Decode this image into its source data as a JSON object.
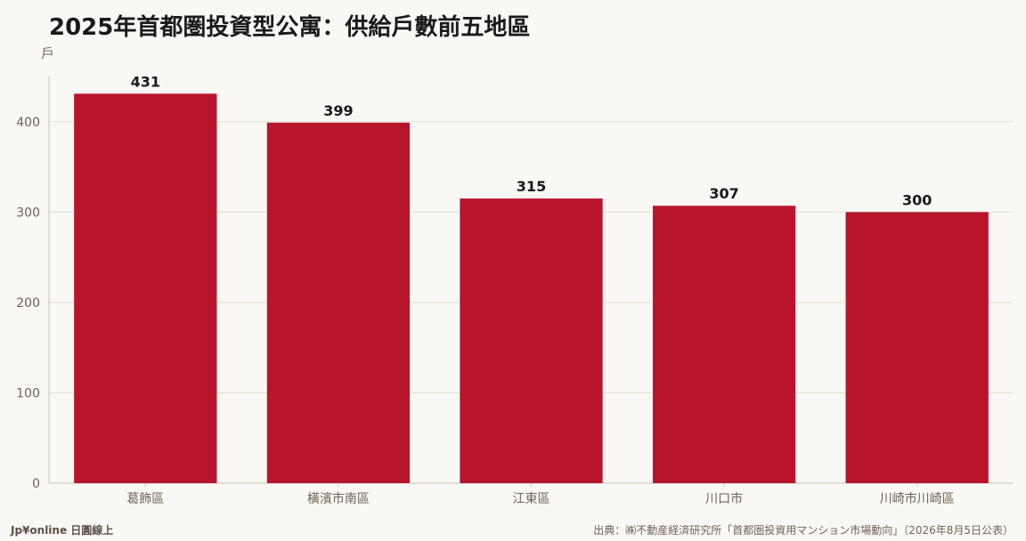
{
  "chart_data": {
    "type": "bar",
    "title": "2025年首都圏投資型公寓：供給戶數前五地區",
    "ylabel": "戶",
    "xlabel": "",
    "categories": [
      "葛飾區",
      "橫濱市南區",
      "江東區",
      "川口市",
      "川崎市川崎區"
    ],
    "values": [
      431,
      399,
      315,
      307,
      300
    ],
    "ylim": [
      0,
      450
    ],
    "yticks": [
      0,
      100,
      200,
      300,
      400
    ],
    "grid": true,
    "legend": "none",
    "bar_color": "#b8152c"
  },
  "footer": {
    "brand": "Jp¥online 日圓線上",
    "source": "出典：㈱不動産経済研究所「首都圏投資用マンション市場動向」（2026年8月5日公表）"
  },
  "colors": {
    "background": "#faf8f4",
    "grid": "#e3ddd4",
    "axis": "#c8c0b4"
  }
}
